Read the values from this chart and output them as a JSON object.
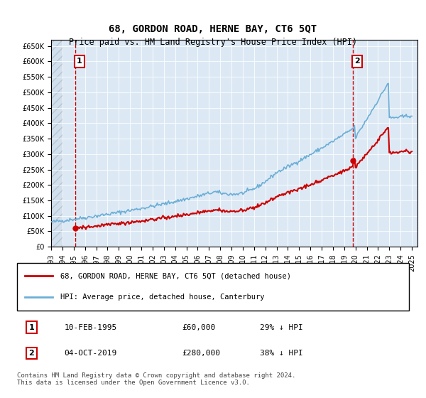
{
  "title": "68, GORDON ROAD, HERNE BAY, CT6 5QT",
  "subtitle": "Price paid vs. HM Land Registry's House Price Index (HPI)",
  "legend_line1": "68, GORDON ROAD, HERNE BAY, CT6 5QT (detached house)",
  "legend_line2": "HPI: Average price, detached house, Canterbury",
  "annotation1_label": "1",
  "annotation1_date": "10-FEB-1995",
  "annotation1_price": "£60,000",
  "annotation1_hpi": "29% ↓ HPI",
  "annotation2_label": "2",
  "annotation2_date": "04-OCT-2019",
  "annotation2_price": "£280,000",
  "annotation2_hpi": "38% ↓ HPI",
  "footer": "Contains HM Land Registry data © Crown copyright and database right 2024.\nThis data is licensed under the Open Government Licence v3.0.",
  "background_color": "#dce9f5",
  "plot_bg_color": "#dce9f5",
  "hpi_line_color": "#6baed6",
  "sale_line_color": "#cc0000",
  "annotation_line_color": "#cc0000",
  "sale1_x": 1995.11,
  "sale1_y": 60000,
  "sale2_x": 2019.75,
  "sale2_y": 280000,
  "ylim_min": 0,
  "ylim_max": 670000,
  "xlim_min": 1993,
  "xlim_max": 2025.5,
  "yticks": [
    0,
    50000,
    100000,
    150000,
    200000,
    250000,
    300000,
    350000,
    400000,
    450000,
    500000,
    550000,
    600000,
    650000
  ],
  "xtick_years": [
    1993,
    1994,
    1995,
    1996,
    1997,
    1998,
    1999,
    2000,
    2001,
    2002,
    2003,
    2004,
    2005,
    2006,
    2007,
    2008,
    2009,
    2010,
    2011,
    2012,
    2013,
    2014,
    2015,
    2016,
    2017,
    2018,
    2019,
    2020,
    2021,
    2022,
    2023,
    2024,
    2025
  ]
}
